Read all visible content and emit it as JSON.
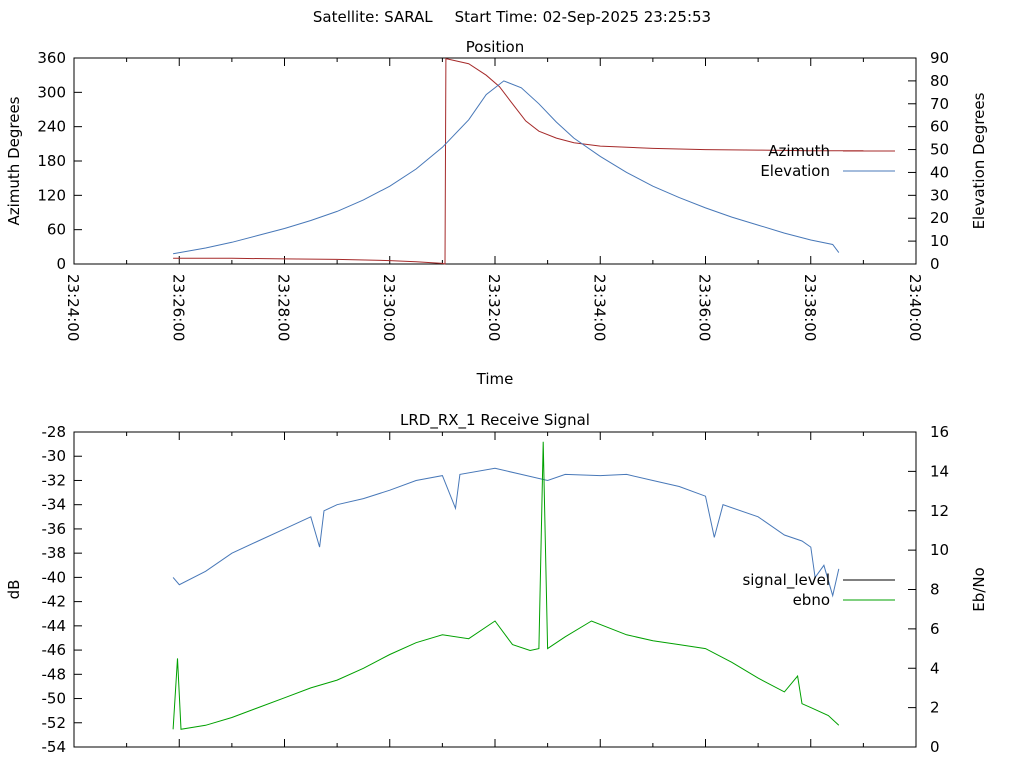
{
  "header": {
    "satellite_label": "Satellite: SARAL",
    "start_time_label": "Start Time: 02-Sep-2025 23:25:53"
  },
  "chart_data": [
    {
      "id": "position",
      "type": "line",
      "title": "Position",
      "xlabel": "Time",
      "ylabel": "Azimuth Degrees",
      "y2label": "Elevation Degrees",
      "x_ticks": [
        "23:24:00",
        "23:26:00",
        "23:28:00",
        "23:30:00",
        "23:32:00",
        "23:34:00",
        "23:36:00",
        "23:38:00",
        "23:40:00"
      ],
      "x_range": [
        "23:24:00",
        "23:40:00"
      ],
      "ylim": [
        0,
        360
      ],
      "y_ticks": [
        0,
        60,
        120,
        180,
        240,
        300,
        360
      ],
      "y2lim": [
        0,
        90
      ],
      "y2_ticks": [
        0,
        10,
        20,
        30,
        40,
        50,
        60,
        70,
        80,
        90
      ],
      "grid": false,
      "legend": "right",
      "series": [
        {
          "name": "Azimuth",
          "axis": "y",
          "color": "#a52a2a",
          "points": [
            [
              "23:25:53",
              10
            ],
            [
              "23:27:00",
              10
            ],
            [
              "23:28:00",
              9
            ],
            [
              "23:29:00",
              8
            ],
            [
              "23:30:00",
              6
            ],
            [
              "23:30:30",
              4
            ],
            [
              "23:31:00",
              1
            ],
            [
              "23:31:03",
              0
            ],
            [
              "23:31:04",
              359
            ],
            [
              "23:31:30",
              350
            ],
            [
              "23:31:50",
              330
            ],
            [
              "23:32:05",
              310
            ],
            [
              "23:32:20",
              280
            ],
            [
              "23:32:35",
              250
            ],
            [
              "23:32:50",
              232
            ],
            [
              "23:33:10",
              220
            ],
            [
              "23:33:30",
              212
            ],
            [
              "23:34:00",
              206
            ],
            [
              "23:35:00",
              202
            ],
            [
              "23:36:00",
              200
            ],
            [
              "23:37:00",
              199
            ],
            [
              "23:38:00",
              198
            ],
            [
              "23:39:00",
              198
            ]
          ]
        },
        {
          "name": "Elevation",
          "axis": "y2",
          "color": "#4878b8",
          "points": [
            [
              "23:25:53",
              4.5
            ],
            [
              "23:26:30",
              7
            ],
            [
              "23:27:00",
              9.5
            ],
            [
              "23:27:30",
              12.5
            ],
            [
              "23:28:00",
              15.5
            ],
            [
              "23:28:30",
              19
            ],
            [
              "23:29:00",
              23
            ],
            [
              "23:29:30",
              28
            ],
            [
              "23:30:00",
              34
            ],
            [
              "23:30:30",
              41.5
            ],
            [
              "23:31:00",
              51
            ],
            [
              "23:31:30",
              63
            ],
            [
              "23:31:50",
              74
            ],
            [
              "23:32:10",
              80
            ],
            [
              "23:32:30",
              77
            ],
            [
              "23:32:50",
              70
            ],
            [
              "23:33:10",
              62
            ],
            [
              "23:33:30",
              55
            ],
            [
              "23:34:00",
              47
            ],
            [
              "23:34:30",
              40
            ],
            [
              "23:35:00",
              34
            ],
            [
              "23:35:30",
              29
            ],
            [
              "23:36:00",
              24.5
            ],
            [
              "23:36:30",
              20.5
            ],
            [
              "23:37:00",
              17
            ],
            [
              "23:37:30",
              13.5
            ],
            [
              "23:38:00",
              10.5
            ],
            [
              "23:38:25",
              8.5
            ],
            [
              "23:38:32",
              5
            ]
          ]
        }
      ]
    },
    {
      "id": "receive-signal",
      "type": "line",
      "title": "LRD_RX_1 Receive Signal",
      "xlabel": "",
      "ylabel": "dB",
      "y2label": "Eb/No",
      "x_range": [
        "23:24:00",
        "23:40:00"
      ],
      "ylim": [
        -54,
        -28
      ],
      "y_ticks": [
        -54,
        -52,
        -50,
        -48,
        -46,
        -44,
        -42,
        -40,
        -38,
        -36,
        -34,
        -32,
        -30,
        -28
      ],
      "y2lim": [
        0,
        16
      ],
      "y2_ticks": [
        0,
        2,
        4,
        6,
        8,
        10,
        12,
        14,
        16
      ],
      "grid": false,
      "legend": "right",
      "series": [
        {
          "name": "signal_level",
          "axis": "y",
          "color": "#4878b8",
          "points": [
            [
              "23:25:53",
              -40
            ],
            [
              "23:26:00",
              -40.6
            ],
            [
              "23:26:30",
              -39.5
            ],
            [
              "23:27:00",
              -38
            ],
            [
              "23:27:30",
              -37
            ],
            [
              "23:28:00",
              -36
            ],
            [
              "23:28:30",
              -35
            ],
            [
              "23:28:40",
              -37.5
            ],
            [
              "23:28:45",
              -34.5
            ],
            [
              "23:29:00",
              -34
            ],
            [
              "23:29:30",
              -33.5
            ],
            [
              "23:30:00",
              -32.8
            ],
            [
              "23:30:30",
              -32
            ],
            [
              "23:31:00",
              -31.6
            ],
            [
              "23:31:15",
              -34.3
            ],
            [
              "23:31:20",
              -31.5
            ],
            [
              "23:32:00",
              -31
            ],
            [
              "23:32:30",
              -31.5
            ],
            [
              "23:33:00",
              -32
            ],
            [
              "23:33:20",
              -31.5
            ],
            [
              "23:34:00",
              -31.6
            ],
            [
              "23:34:30",
              -31.5
            ],
            [
              "23:35:00",
              -32
            ],
            [
              "23:35:30",
              -32.5
            ],
            [
              "23:36:00",
              -33.3
            ],
            [
              "23:36:10",
              -36.7
            ],
            [
              "23:36:20",
              -34
            ],
            [
              "23:37:00",
              -35
            ],
            [
              "23:37:30",
              -36.5
            ],
            [
              "23:37:50",
              -37
            ],
            [
              "23:38:00",
              -37.5
            ],
            [
              "23:38:05",
              -40
            ],
            [
              "23:38:15",
              -39
            ],
            [
              "23:38:25",
              -41.5
            ],
            [
              "23:38:32",
              -39.3
            ]
          ]
        },
        {
          "name": "ebno",
          "axis": "y2",
          "color": "#00a000",
          "points": [
            [
              "23:25:53",
              0.9
            ],
            [
              "23:25:58",
              4.5
            ],
            [
              "23:26:02",
              0.9
            ],
            [
              "23:26:30",
              1.1
            ],
            [
              "23:27:00",
              1.5
            ],
            [
              "23:27:30",
              2
            ],
            [
              "23:28:00",
              2.5
            ],
            [
              "23:28:30",
              3
            ],
            [
              "23:29:00",
              3.4
            ],
            [
              "23:29:30",
              4
            ],
            [
              "23:30:00",
              4.7
            ],
            [
              "23:30:30",
              5.3
            ],
            [
              "23:31:00",
              5.7
            ],
            [
              "23:31:30",
              5.5
            ],
            [
              "23:32:00",
              6.4
            ],
            [
              "23:32:20",
              5.2
            ],
            [
              "23:32:40",
              4.9
            ],
            [
              "23:32:50",
              5
            ],
            [
              "23:32:55",
              15.5
            ],
            [
              "23:33:00",
              5
            ],
            [
              "23:33:20",
              5.6
            ],
            [
              "23:33:50",
              6.4
            ],
            [
              "23:34:30",
              5.7
            ],
            [
              "23:35:00",
              5.4
            ],
            [
              "23:35:30",
              5.2
            ],
            [
              "23:36:00",
              5.0
            ],
            [
              "23:36:30",
              4.3
            ],
            [
              "23:37:00",
              3.5
            ],
            [
              "23:37:30",
              2.8
            ],
            [
              "23:37:45",
              3.6
            ],
            [
              "23:37:50",
              2.2
            ],
            [
              "23:38:00",
              2
            ],
            [
              "23:38:20",
              1.6
            ],
            [
              "23:38:32",
              1.1
            ]
          ]
        }
      ]
    }
  ]
}
